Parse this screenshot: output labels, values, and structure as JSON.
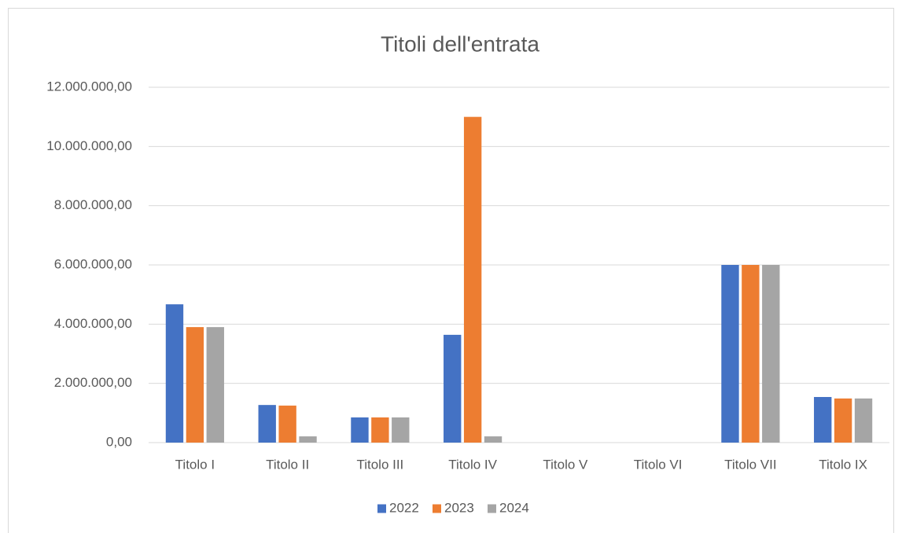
{
  "chart_data": {
    "type": "bar",
    "title": "Titoli dell'entrata",
    "categories": [
      "Titolo I",
      "Titolo II",
      "Titolo III",
      "Titolo IV",
      "Titolo V",
      "Titolo VI",
      "Titolo VII",
      "Titolo IX"
    ],
    "series": [
      {
        "name": "2022",
        "color": "#4472c4",
        "values": [
          4670000,
          1270000,
          850000,
          3640000,
          0,
          0,
          6000000,
          1540000
        ]
      },
      {
        "name": "2023",
        "color": "#ed7d31",
        "values": [
          3900000,
          1250000,
          850000,
          11000000,
          0,
          0,
          6000000,
          1490000
        ]
      },
      {
        "name": "2024",
        "color": "#a5a5a5",
        "values": [
          3900000,
          210000,
          850000,
          210000,
          0,
          0,
          6000000,
          1490000
        ]
      }
    ],
    "ylim": [
      0,
      12000000
    ],
    "yticks": [
      {
        "value": 0,
        "label": "0,00"
      },
      {
        "value": 2000000,
        "label": "2.000.000,00"
      },
      {
        "value": 4000000,
        "label": "4.000.000,00"
      },
      {
        "value": 6000000,
        "label": "6.000.000,00"
      },
      {
        "value": 8000000,
        "label": "8.000.000,00"
      },
      {
        "value": 10000000,
        "label": "10.000.000,00"
      },
      {
        "value": 12000000,
        "label": "12.000.000,00"
      }
    ],
    "grid": true,
    "legend": "bottom"
  }
}
